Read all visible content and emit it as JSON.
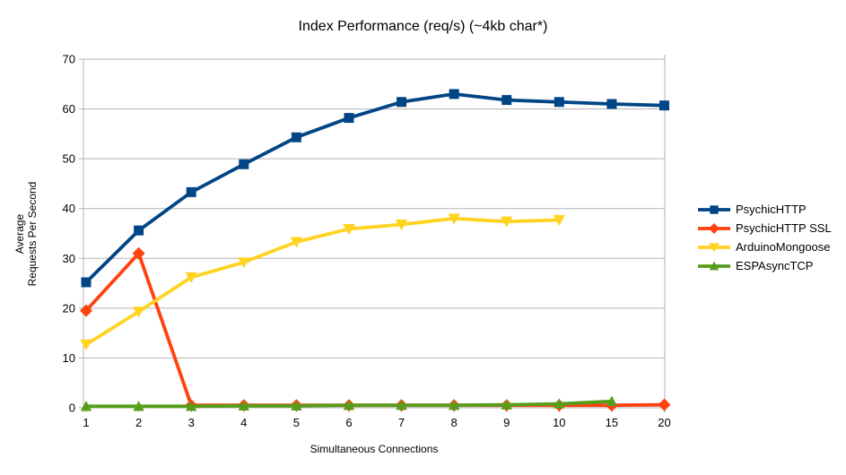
{
  "chart_data": {
    "type": "line",
    "title": "Index Performance (req/s) (~4kb char*)",
    "xlabel": "Simultaneous Connections",
    "ylabel_lines": [
      "Average",
      "Requests Per Second"
    ],
    "categories": [
      "1",
      "2",
      "3",
      "4",
      "5",
      "6",
      "7",
      "8",
      "9",
      "10",
      "15",
      "20"
    ],
    "yticks": [
      0,
      10,
      20,
      30,
      40,
      50,
      60,
      70
    ],
    "ylim": [
      0,
      70
    ],
    "grid": "horizontal",
    "legend_position": "right",
    "background_color": "#ffffff",
    "grid_color": "#b3b3b3",
    "text_color": "#000000",
    "series": [
      {
        "name": "PsychicHTTP",
        "color": "#004586",
        "marker": "square",
        "values": [
          25.2,
          35.6,
          43.3,
          48.9,
          54.3,
          58.2,
          61.4,
          63.0,
          61.8,
          61.4,
          61.0,
          60.7
        ]
      },
      {
        "name": "PsychicHTTP SSL",
        "color": "#ff420e",
        "marker": "diamond",
        "values": [
          19.5,
          31.0,
          0.5,
          0.5,
          0.5,
          0.5,
          0.5,
          0.5,
          0.5,
          0.5,
          0.5,
          0.6
        ]
      },
      {
        "name": "ArduinoMongoose",
        "color": "#ffd320",
        "marker": "triangle-down",
        "values": [
          12.7,
          19.3,
          26.2,
          29.2,
          33.3,
          35.9,
          36.8,
          38.0,
          37.4,
          37.7
        ]
      },
      {
        "name": "ESPAsyncTCP",
        "color": "#579d1c",
        "marker": "triangle-up",
        "values": [
          0.3,
          0.3,
          0.3,
          0.4,
          0.4,
          0.5,
          0.5,
          0.5,
          0.6,
          0.8,
          1.3
        ]
      }
    ]
  }
}
